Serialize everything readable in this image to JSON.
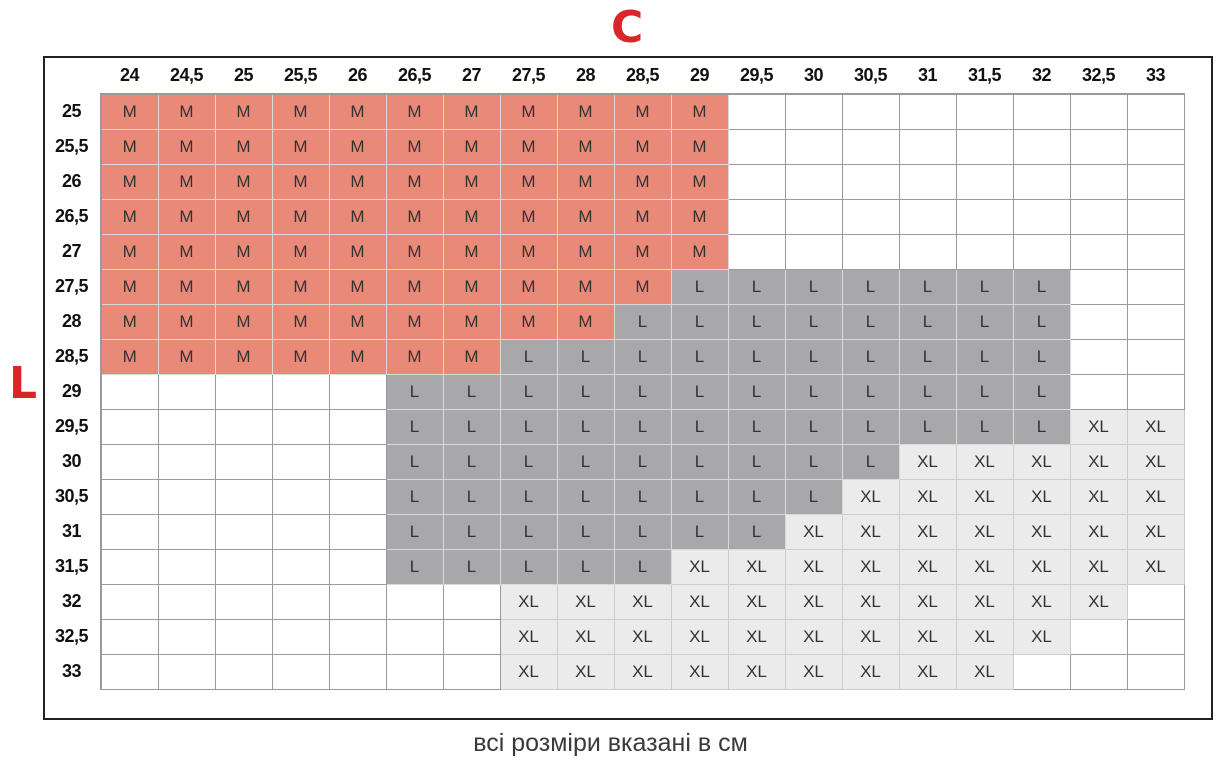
{
  "axis_labels": {
    "columns": "C",
    "rows": "L"
  },
  "columns": [
    "24",
    "24,5",
    "25",
    "25,5",
    "26",
    "26,5",
    "27",
    "27,5",
    "28",
    "28,5",
    "29",
    "29,5",
    "30",
    "30,5",
    "31",
    "31,5",
    "32",
    "32,5",
    "33"
  ],
  "rows": [
    {
      "label": "25",
      "cells": [
        "M",
        "M",
        "M",
        "M",
        "M",
        "M",
        "M",
        "M",
        "M",
        "M",
        "M",
        "",
        "",
        "",
        "",
        "",
        "",
        "",
        ""
      ]
    },
    {
      "label": "25,5",
      "cells": [
        "M",
        "M",
        "M",
        "M",
        "M",
        "M",
        "M",
        "M",
        "M",
        "M",
        "M",
        "",
        "",
        "",
        "",
        "",
        "",
        "",
        ""
      ]
    },
    {
      "label": "26",
      "cells": [
        "M",
        "M",
        "M",
        "M",
        "M",
        "M",
        "M",
        "M",
        "M",
        "M",
        "M",
        "",
        "",
        "",
        "",
        "",
        "",
        "",
        ""
      ]
    },
    {
      "label": "26,5",
      "cells": [
        "M",
        "M",
        "M",
        "M",
        "M",
        "M",
        "M",
        "M",
        "M",
        "M",
        "M",
        "",
        "",
        "",
        "",
        "",
        "",
        "",
        ""
      ]
    },
    {
      "label": "27",
      "cells": [
        "M",
        "M",
        "M",
        "M",
        "M",
        "M",
        "M",
        "M",
        "M",
        "M",
        "M",
        "",
        "",
        "",
        "",
        "",
        "",
        "",
        ""
      ]
    },
    {
      "label": "27,5",
      "cells": [
        "M",
        "M",
        "M",
        "M",
        "M",
        "M",
        "M",
        "M",
        "M",
        "M",
        "L",
        "L",
        "L",
        "L",
        "L",
        "L",
        "L",
        "",
        ""
      ]
    },
    {
      "label": "28",
      "cells": [
        "M",
        "M",
        "M",
        "M",
        "M",
        "M",
        "M",
        "M",
        "M",
        "L",
        "L",
        "L",
        "L",
        "L",
        "L",
        "L",
        "L",
        "",
        ""
      ]
    },
    {
      "label": "28,5",
      "cells": [
        "M",
        "M",
        "M",
        "M",
        "M",
        "M",
        "M",
        "L",
        "L",
        "L",
        "L",
        "L",
        "L",
        "L",
        "L",
        "L",
        "L",
        "",
        ""
      ]
    },
    {
      "label": "29",
      "cells": [
        "",
        "",
        "",
        "",
        "",
        "L",
        "L",
        "L",
        "L",
        "L",
        "L",
        "L",
        "L",
        "L",
        "L",
        "L",
        "L",
        "",
        ""
      ]
    },
    {
      "label": "29,5",
      "cells": [
        "",
        "",
        "",
        "",
        "",
        "L",
        "L",
        "L",
        "L",
        "L",
        "L",
        "L",
        "L",
        "L",
        "L",
        "L",
        "L",
        "XL",
        "XL"
      ]
    },
    {
      "label": "30",
      "cells": [
        "",
        "",
        "",
        "",
        "",
        "L",
        "L",
        "L",
        "L",
        "L",
        "L",
        "L",
        "L",
        "L",
        "XL",
        "XL",
        "XL",
        "XL",
        "XL"
      ]
    },
    {
      "label": "30,5",
      "cells": [
        "",
        "",
        "",
        "",
        "",
        "L",
        "L",
        "L",
        "L",
        "L",
        "L",
        "L",
        "L",
        "XL",
        "XL",
        "XL",
        "XL",
        "XL",
        "XL"
      ]
    },
    {
      "label": "31",
      "cells": [
        "",
        "",
        "",
        "",
        "",
        "L",
        "L",
        "L",
        "L",
        "L",
        "L",
        "L",
        "XL",
        "XL",
        "XL",
        "XL",
        "XL",
        "XL",
        "XL"
      ]
    },
    {
      "label": "31,5",
      "cells": [
        "",
        "",
        "",
        "",
        "",
        "L",
        "L",
        "L",
        "L",
        "L",
        "XL",
        "XL",
        "XL",
        "XL",
        "XL",
        "XL",
        "XL",
        "XL",
        "XL"
      ]
    },
    {
      "label": "32",
      "cells": [
        "",
        "",
        "",
        "",
        "",
        "",
        "",
        "XL",
        "XL",
        "XL",
        "XL",
        "XL",
        "XL",
        "XL",
        "XL",
        "XL",
        "XL",
        "XL",
        ""
      ]
    },
    {
      "label": "32,5",
      "cells": [
        "",
        "",
        "",
        "",
        "",
        "",
        "",
        "XL",
        "XL",
        "XL",
        "XL",
        "XL",
        "XL",
        "XL",
        "XL",
        "XL",
        "XL",
        "",
        ""
      ]
    },
    {
      "label": "33",
      "cells": [
        "",
        "",
        "",
        "",
        "",
        "",
        "",
        "XL",
        "XL",
        "XL",
        "XL",
        "XL",
        "XL",
        "XL",
        "XL",
        "XL",
        "",
        "",
        ""
      ]
    }
  ],
  "size_colors": {
    "M": "#e98a78",
    "L": "#a8a8ab",
    "XL": "#ebebeb"
  },
  "caption": "всі розміри вказані в см"
}
